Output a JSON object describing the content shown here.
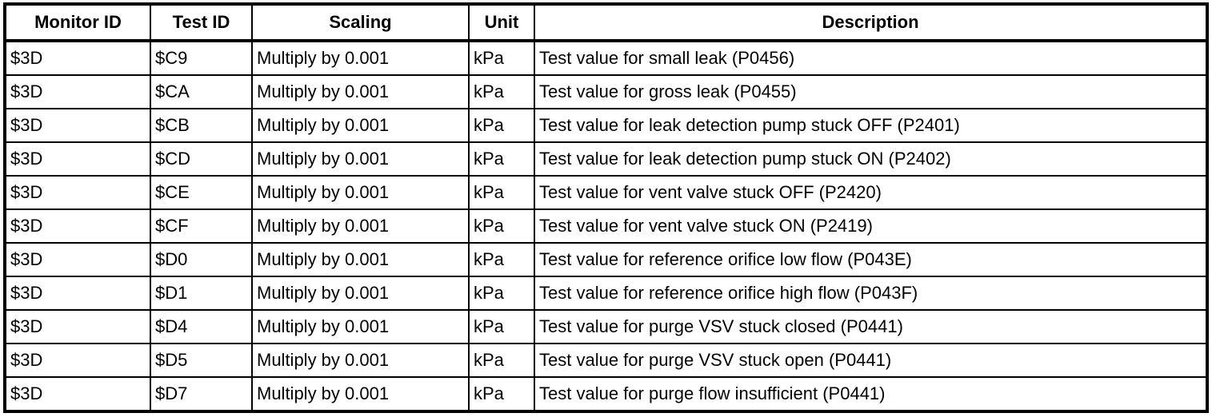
{
  "colors": {
    "border": "#000000",
    "text": "#000000",
    "background": "#ffffff"
  },
  "table": {
    "columns": [
      "Monitor ID",
      "Test ID",
      "Scaling",
      "Unit",
      "Description"
    ],
    "column_keys": [
      "monitor-id",
      "test-id",
      "scaling",
      "unit",
      "description"
    ],
    "rows": [
      [
        "$3D",
        "$C9",
        "Multiply by 0.001",
        "kPa",
        "Test value for small leak (P0456)"
      ],
      [
        "$3D",
        "$CA",
        "Multiply by 0.001",
        "kPa",
        "Test value for gross leak (P0455)"
      ],
      [
        "$3D",
        "$CB",
        "Multiply by 0.001",
        "kPa",
        "Test value for leak detection pump stuck OFF (P2401)"
      ],
      [
        "$3D",
        "$CD",
        "Multiply by 0.001",
        "kPa",
        "Test value for leak detection pump stuck ON (P2402)"
      ],
      [
        "$3D",
        "$CE",
        "Multiply by 0.001",
        "kPa",
        "Test value for vent valve stuck OFF (P2420)"
      ],
      [
        "$3D",
        "$CF",
        "Multiply by 0.001",
        "kPa",
        "Test value for vent valve stuck ON (P2419)"
      ],
      [
        "$3D",
        "$D0",
        "Multiply by 0.001",
        "kPa",
        "Test value for reference orifice low flow (P043E)"
      ],
      [
        "$3D",
        "$D1",
        "Multiply by 0.001",
        "kPa",
        "Test value for reference orifice high flow (P043F)"
      ],
      [
        "$3D",
        "$D4",
        "Multiply by 0.001",
        "kPa",
        "Test value for purge VSV stuck closed (P0441)"
      ],
      [
        "$3D",
        "$D5",
        "Multiply by 0.001",
        "kPa",
        "Test value for purge VSV stuck open (P0441)"
      ],
      [
        "$3D",
        "$D7",
        "Multiply by 0.001",
        "kPa",
        "Test value for purge flow insufficient (P0441)"
      ]
    ]
  }
}
